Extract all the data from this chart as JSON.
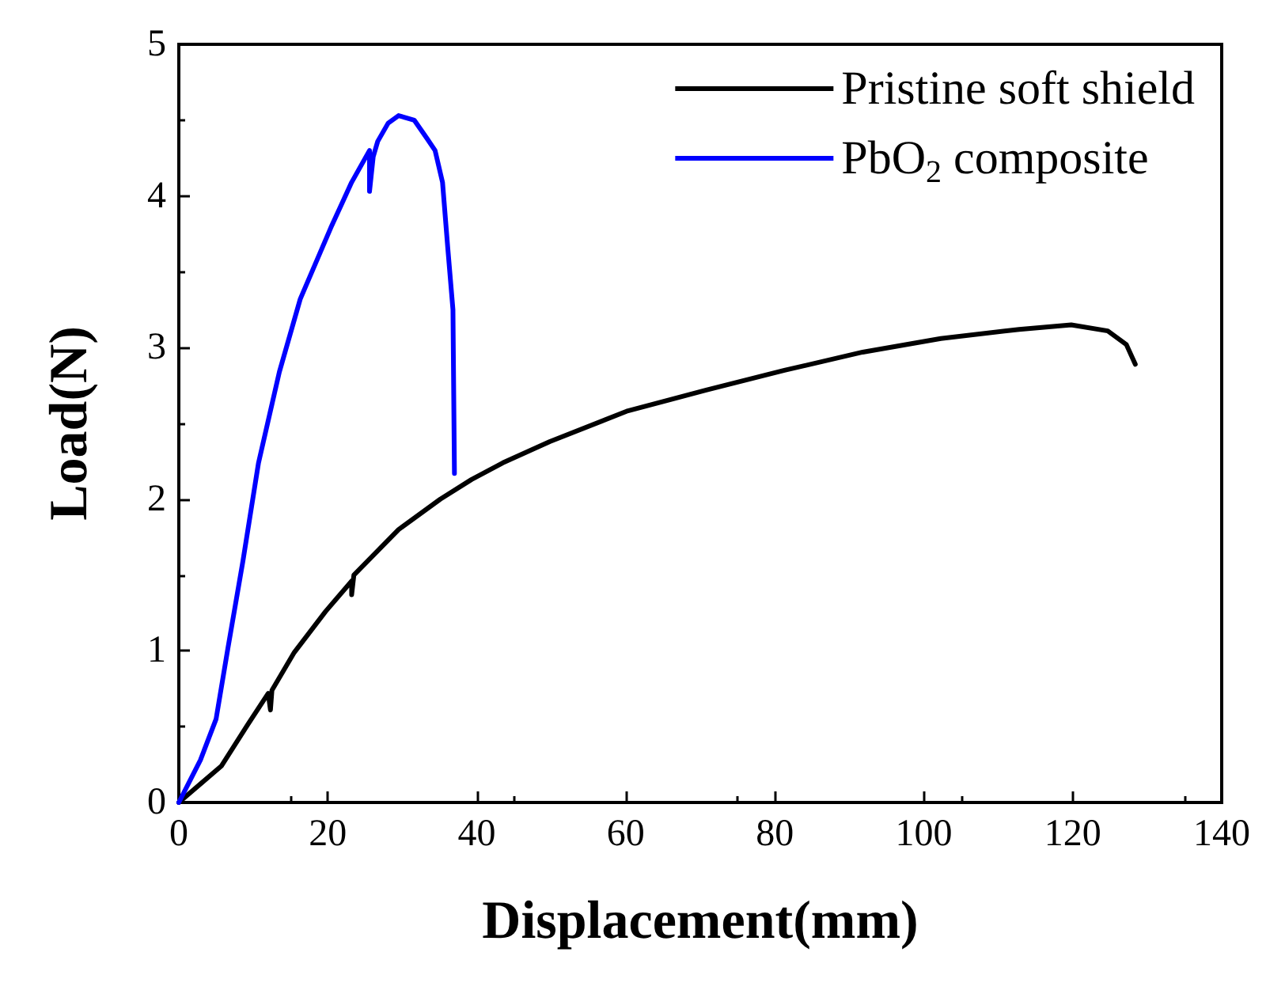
{
  "chart_data": {
    "type": "line",
    "xlabel": "Displacement(mm)",
    "ylabel": "Load(N)",
    "xlim": [
      0,
      140
    ],
    "xticks": [
      0,
      20,
      40,
      60,
      80,
      100,
      120,
      140
    ],
    "ylim": [
      0,
      5
    ],
    "yticks": [
      0,
      1,
      2,
      3,
      4,
      5
    ],
    "grid": false,
    "legend": "top right",
    "marker": "none",
    "line_style": "solid",
    "series": [
      {
        "name": "Pristine soft shield",
        "color": "#000000",
        "x": [
          0,
          5.7,
          9.2,
          12.0,
          12.3,
          12.5,
          15.5,
          19.7,
          23.2,
          23.2,
          23.5,
          25.3,
          29.5,
          35.1,
          39.3,
          43.5,
          49.8,
          60.1,
          70.8,
          81.3,
          91.8,
          102.3,
          112.8,
          119.8,
          124.7,
          127.2,
          128.4
        ],
        "values": [
          0,
          0.24,
          0.51,
          0.72,
          0.61,
          0.74,
          0.99,
          1.26,
          1.46,
          1.37,
          1.5,
          1.59,
          1.8,
          2.0,
          2.13,
          2.24,
          2.38,
          2.58,
          2.72,
          2.85,
          2.97,
          3.06,
          3.12,
          3.15,
          3.11,
          3.02,
          2.89
        ]
      },
      {
        "name": "PbO$_{2}$ composite",
        "color": "#0000ff",
        "x": [
          0,
          2.9,
          5.0,
          6.6,
          8.6,
          10.7,
          13.5,
          16.3,
          20.4,
          23.2,
          25.6,
          25.6,
          26.1,
          26.7,
          28.1,
          29.5,
          31.6,
          33.3,
          34.4,
          35.4,
          36.1,
          36.8,
          37.0
        ],
        "values": [
          0,
          0.28,
          0.55,
          1.02,
          1.59,
          2.24,
          2.84,
          3.32,
          3.79,
          4.09,
          4.3,
          4.03,
          4.26,
          4.36,
          4.48,
          4.53,
          4.5,
          4.38,
          4.3,
          4.09,
          3.66,
          3.25,
          2.17
        ]
      }
    ]
  }
}
